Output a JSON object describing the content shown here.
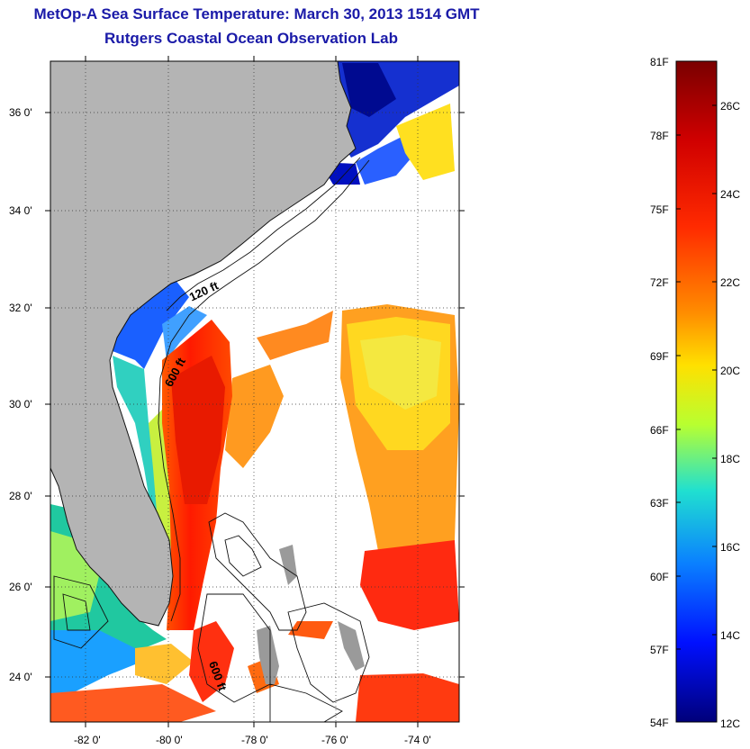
{
  "title": "MetOp-A Sea Surface Temperature:  March 30, 2013 1514 GMT",
  "subtitle": "Rutgers Coastal Ocean Observation Lab",
  "map": {
    "lat_labels": [
      "36 0'",
      "34 0'",
      "32 0'",
      "30 0'",
      "28 0'",
      "26 0'",
      "24 0'"
    ],
    "lon_labels": [
      "-82 0'",
      "-80 0'",
      "-78 0'",
      "-76 0'",
      "-74 0'"
    ],
    "contours": [
      "120 ft",
      "600 ft",
      "600 ft"
    ],
    "land_color": "#b4b4b4"
  },
  "colorbar": {
    "fahrenheit_labels": [
      "81F",
      "78F",
      "75F",
      "72F",
      "69F",
      "66F",
      "63F",
      "60F",
      "57F",
      "54F"
    ],
    "celsius_labels": [
      "26C",
      "24C",
      "22C",
      "20C",
      "18C",
      "16C",
      "14C",
      "12C"
    ],
    "colors": [
      "#80000b",
      "#d40000",
      "#ff2b00",
      "#ff8000",
      "#ffd400",
      "#ffff00",
      "#80ff50",
      "#00e0e0",
      "#0080ff",
      "#0010ff",
      "#00008a"
    ]
  }
}
